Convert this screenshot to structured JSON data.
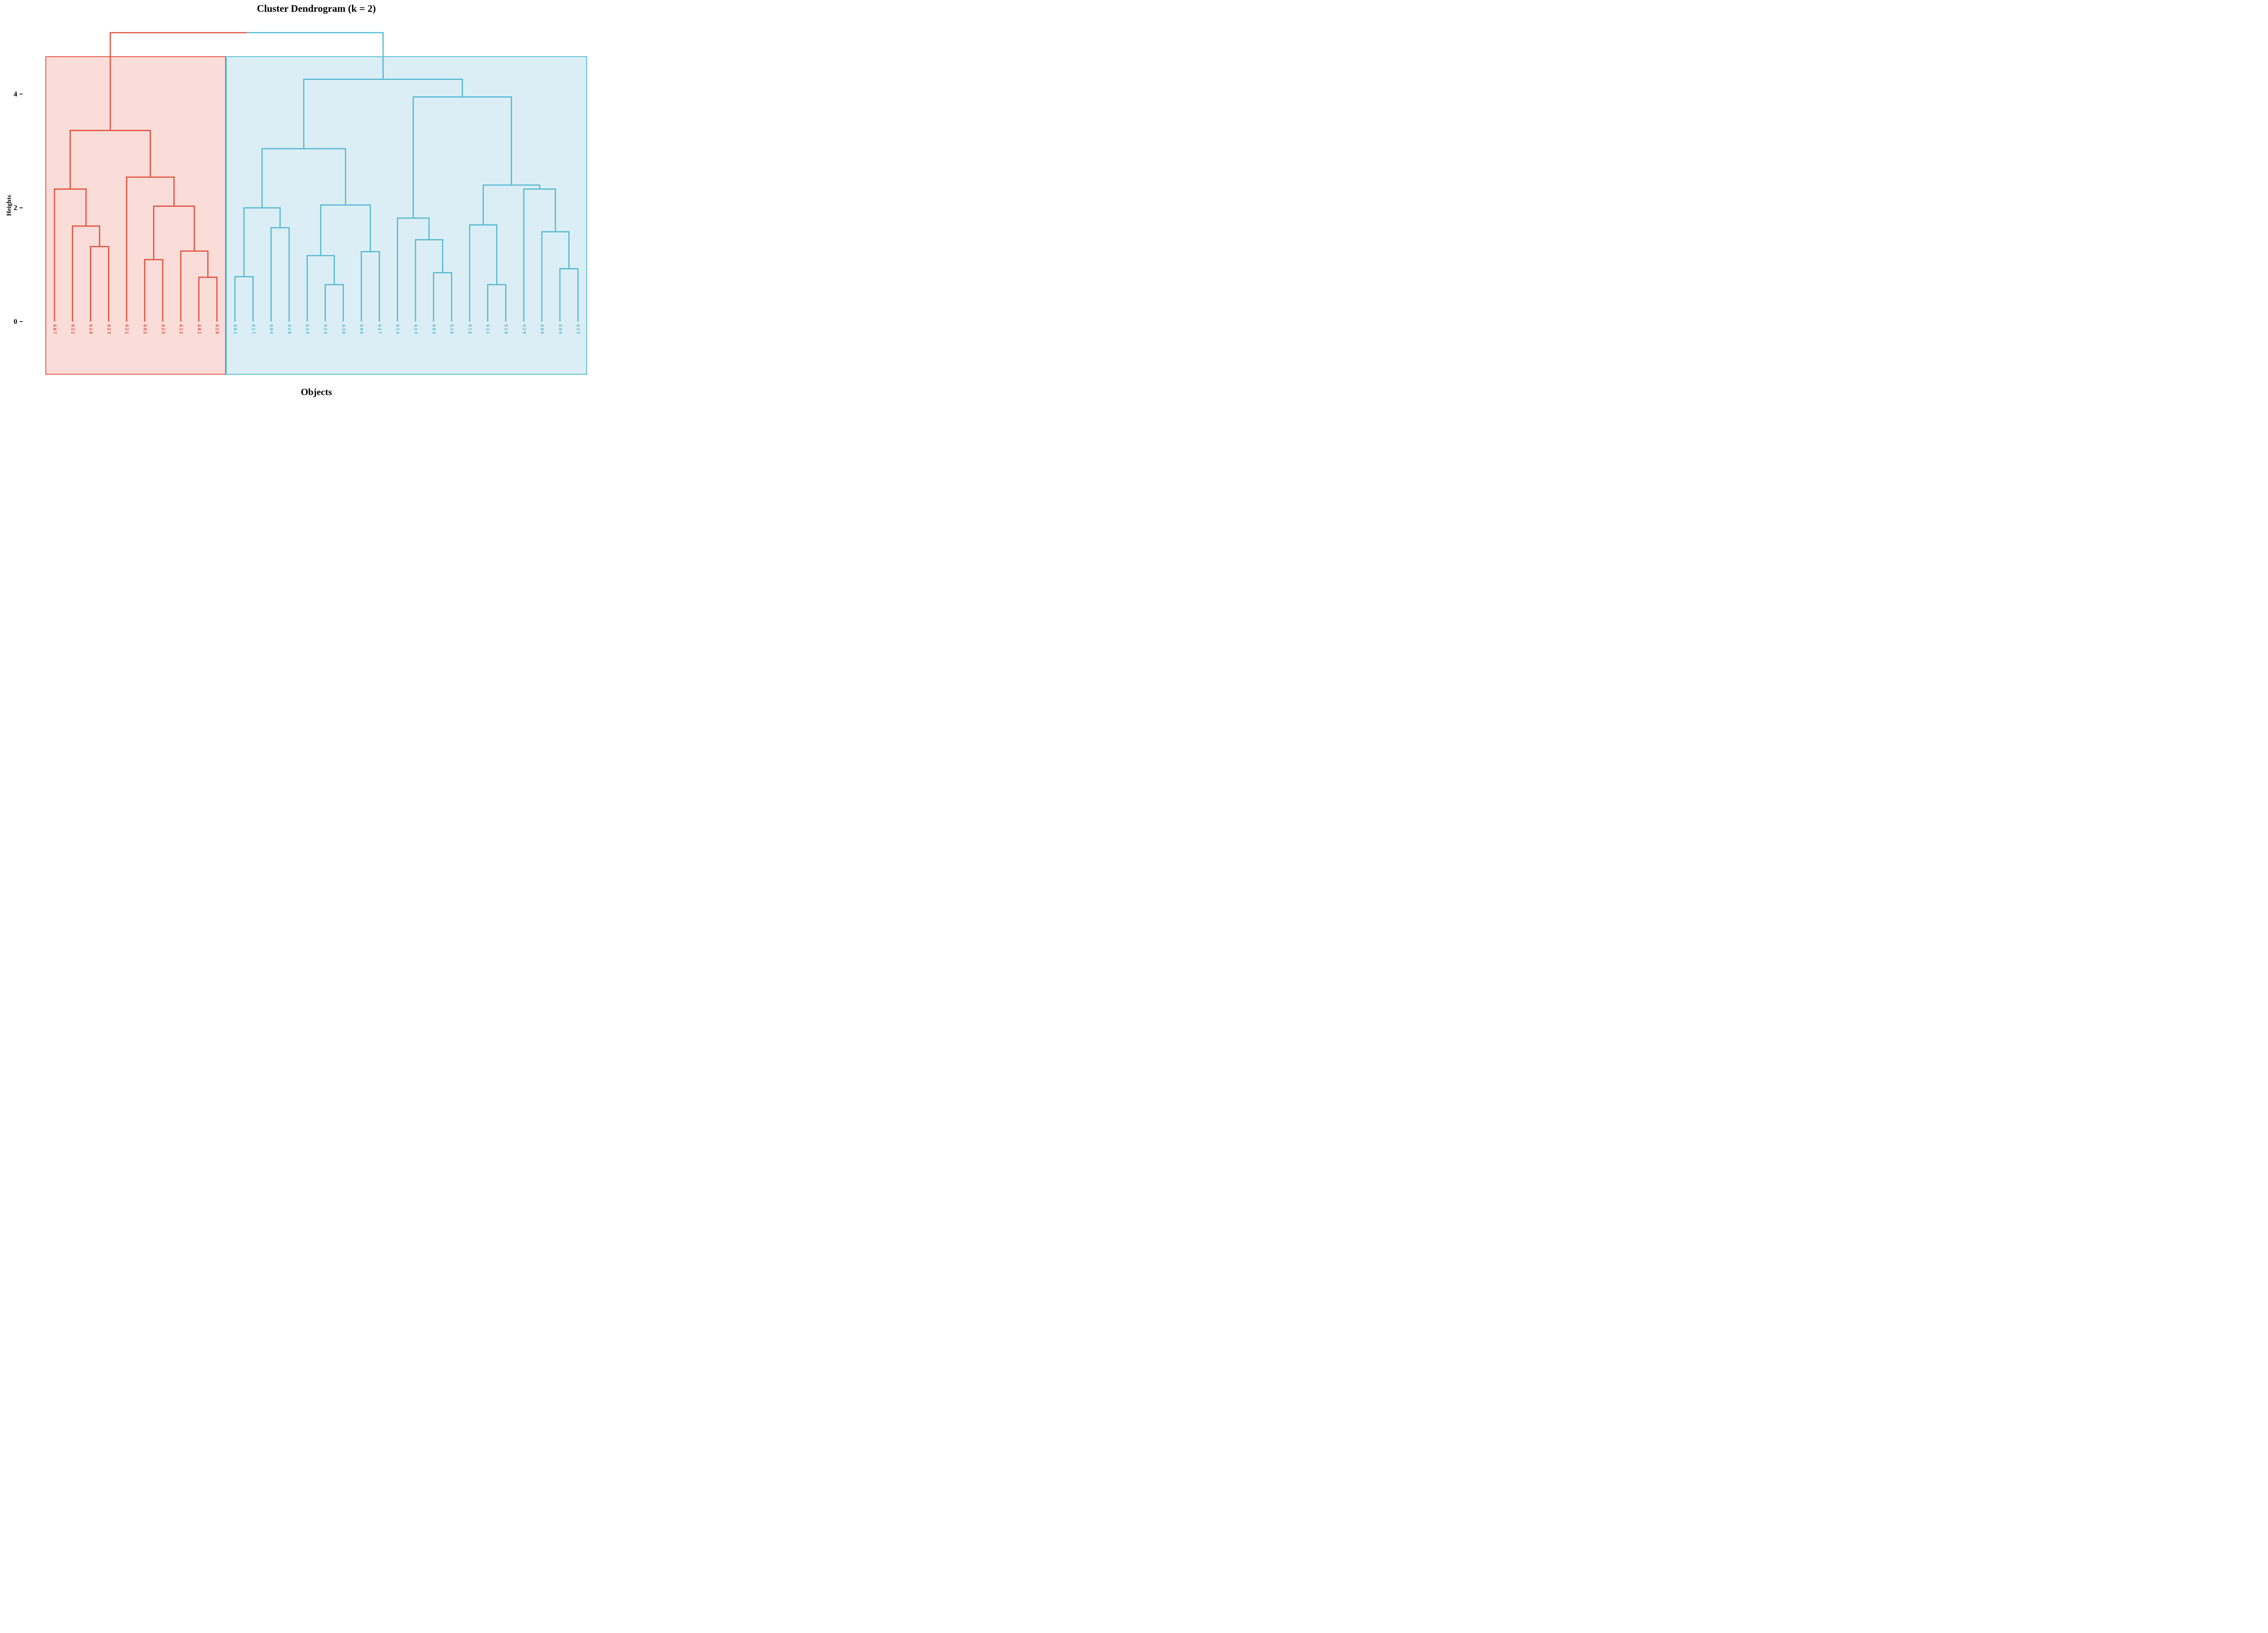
{
  "header": {
    "title": "Cluster Dendrogram (k = 2)"
  },
  "axes": {
    "y_label": "Heights",
    "x_label": "Objects",
    "y_ticks": [
      4,
      2,
      0
    ]
  },
  "chart_data": {
    "type": "dendrogram",
    "title": "Cluster Dendrogram (k = 2)",
    "xlabel": "Objects",
    "ylabel": "Heights",
    "k": 2,
    "yticks": [
      4,
      2,
      0
    ],
    "ylim": [
      0,
      5.6
    ],
    "grid": false,
    "root_merge_height": 5.08,
    "leaf_order": [
      "G07",
      "G22",
      "G20",
      "G23",
      "G21",
      "G05",
      "G25",
      "G12",
      "G01",
      "G16",
      "G02",
      "G17",
      "G04",
      "G26",
      "G19",
      "G24",
      "G30",
      "G06",
      "G27",
      "G14",
      "G13",
      "G03",
      "G10",
      "G18",
      "G11",
      "G28",
      "G29",
      "G08",
      "G09",
      "G15"
    ],
    "clusters": [
      {
        "name": "cluster-1",
        "line_color": "#E14F3B",
        "fill_color": "#FADCD8",
        "leaves": [
          "G07",
          "G22",
          "G20",
          "G23",
          "G21",
          "G05",
          "G25",
          "G12",
          "G01",
          "G16"
        ],
        "tree": {
          "h": 3.36,
          "children": [
            {
              "h": 2.33,
              "children": [
                "G07",
                {
                  "h": 1.68,
                  "children": [
                    "G22",
                    {
                      "h": 1.32,
                      "children": [
                        "G20",
                        "G23"
                      ]
                    }
                  ]
                }
              ]
            },
            {
              "h": 2.54,
              "children": [
                "G21",
                {
                  "h": 2.03,
                  "children": [
                    {
                      "h": 1.09,
                      "children": [
                        "G05",
                        "G25"
                      ]
                    },
                    {
                      "h": 1.24,
                      "children": [
                        "G12",
                        {
                          "h": 0.78,
                          "children": [
                            "G01",
                            "G16"
                          ]
                        }
                      ]
                    }
                  ]
                }
              ]
            }
          ]
        }
      },
      {
        "name": "cluster-2",
        "line_color": "#52B9D2",
        "fill_color": "#DCEEF5",
        "leaves": [
          "G02",
          "G17",
          "G04",
          "G26",
          "G19",
          "G24",
          "G30",
          "G06",
          "G27",
          "G14",
          "G13",
          "G03",
          "G10",
          "G18",
          "G11",
          "G28",
          "G29",
          "G08",
          "G09",
          "G15"
        ],
        "tree": {
          "h": 4.26,
          "children": [
            {
              "h": 3.04,
              "children": [
                {
                  "h": 2.0,
                  "children": [
                    {
                      "h": 0.79,
                      "children": [
                        "G02",
                        "G17"
                      ]
                    },
                    {
                      "h": 1.65,
                      "children": [
                        "G04",
                        "G26"
                      ]
                    }
                  ]
                },
                {
                  "h": 2.05,
                  "children": [
                    {
                      "h": 1.16,
                      "children": [
                        "G19",
                        {
                          "h": 0.65,
                          "children": [
                            "G24",
                            "G30"
                          ]
                        }
                      ]
                    },
                    {
                      "h": 1.23,
                      "children": [
                        "G06",
                        "G27"
                      ]
                    }
                  ]
                }
              ]
            },
            {
              "h": 3.95,
              "children": [
                {
                  "h": 1.82,
                  "children": [
                    "G14",
                    {
                      "h": 1.44,
                      "children": [
                        "G13",
                        {
                          "h": 0.86,
                          "children": [
                            "G03",
                            "G10"
                          ]
                        }
                      ]
                    }
                  ]
                },
                {
                  "h": 2.4,
                  "children": [
                    {
                      "h": 1.7,
                      "children": [
                        "G18",
                        {
                          "h": 0.65,
                          "children": [
                            "G11",
                            "G28"
                          ]
                        }
                      ]
                    },
                    {
                      "h": 2.33,
                      "children": [
                        "G29",
                        {
                          "h": 1.58,
                          "children": [
                            "G08",
                            {
                              "h": 0.93,
                              "children": [
                                "G09",
                                "G15"
                              ]
                            }
                          ]
                        }
                      ]
                    }
                  ]
                }
              ]
            }
          ]
        }
      }
    ]
  }
}
